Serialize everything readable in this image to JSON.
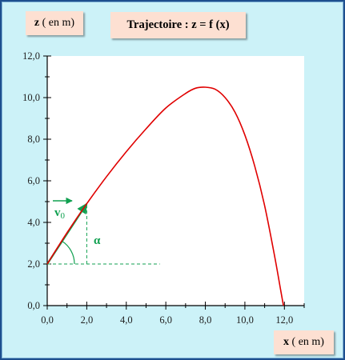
{
  "labels": {
    "z_var": "z",
    "z_unit": "( en m)",
    "x_var": "x",
    "x_unit": "( en m)",
    "title": "Trajectoire : z = f (x)",
    "v0_main": "v",
    "v0_sub": "0",
    "alpha": "α"
  },
  "colors": {
    "background": "#ccf2f8",
    "plot_area": "#ffffff",
    "curve": "#e00000",
    "annotation": "#10a050",
    "label_box": "#fde0d2",
    "frame_border": "#1e4f8f"
  },
  "chart_data": {
    "type": "line",
    "title": "Trajectoire : z = f (x)",
    "xlabel": "x ( en m)",
    "ylabel": "z ( en m)",
    "xlim": [
      0,
      13
    ],
    "ylim": [
      0,
      12
    ],
    "grid": false,
    "x_ticks": [
      "0,0",
      "2,0",
      "4,0",
      "6,0",
      "8,0",
      "10,0",
      "12,0"
    ],
    "y_ticks": [
      "0,0",
      "2,0",
      "4,0",
      "6,0",
      "8,0",
      "10,0",
      "12,0"
    ],
    "series": [
      {
        "x": [
          0,
          1,
          2,
          3,
          4,
          5,
          6,
          7,
          7.5,
          8,
          8.5,
          9,
          9.5,
          10,
          10.5,
          11,
          11.5,
          11.8,
          11.95
        ],
        "y": [
          2.0,
          3.5,
          4.9,
          6.2,
          7.4,
          8.5,
          9.5,
          10.2,
          10.45,
          10.5,
          10.4,
          10.0,
          9.3,
          8.2,
          6.7,
          4.8,
          2.4,
          0.8,
          0.0
        ]
      }
    ],
    "annotations": {
      "launch_point": [
        0,
        2.0
      ],
      "velocity_vector_end": [
        2.0,
        4.9
      ],
      "dashed_vertical_x": 2.0,
      "dashed_horizontal_to_x": 5.7
    }
  }
}
